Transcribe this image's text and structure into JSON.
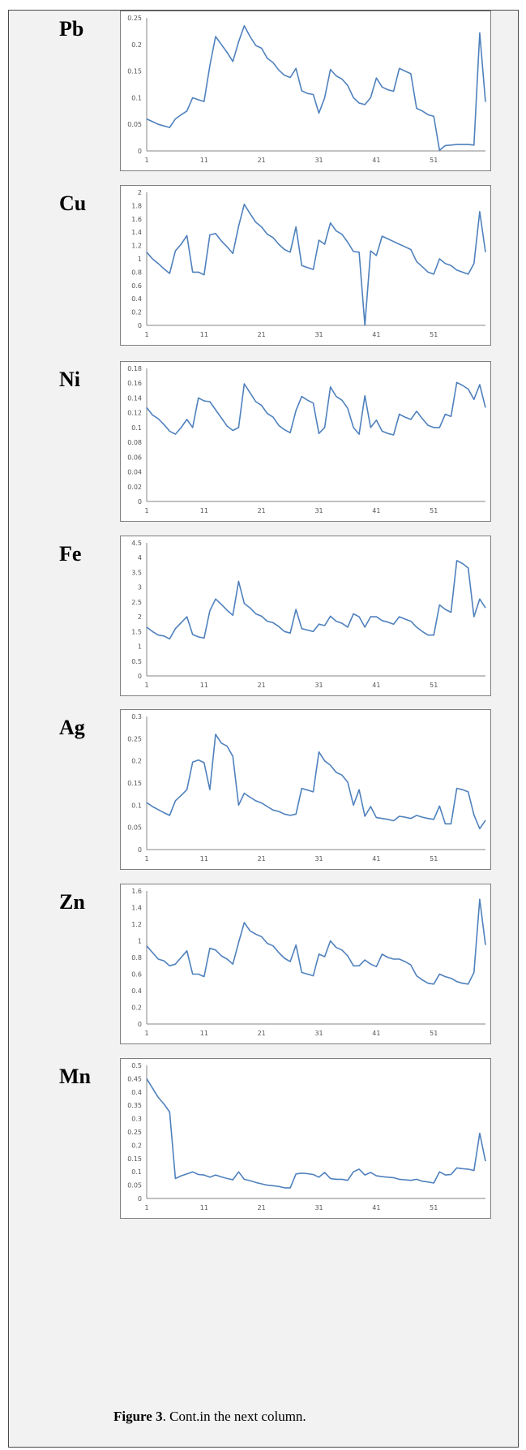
{
  "caption": {
    "label": "Figure 3",
    "text": ". Cont.in the next column."
  },
  "colors": {
    "line": "#4f81bd",
    "axis": "#868686"
  },
  "chart_data": [
    {
      "type": "line",
      "element": "Pb",
      "ylim": [
        0,
        0.25
      ],
      "yticks": [
        "0",
        "0.05",
        "0.1",
        "0.15",
        "0.2",
        "0.25"
      ],
      "xticks": [
        "1",
        "11",
        "21",
        "31",
        "41",
        "51"
      ],
      "x": [
        1,
        2,
        3,
        4,
        5,
        6,
        7,
        8,
        9,
        10,
        11,
        12,
        13,
        14,
        15,
        16,
        17,
        18,
        19,
        20,
        21,
        22,
        23,
        24,
        25,
        26,
        27,
        28,
        29,
        30,
        31,
        32,
        33,
        34,
        35,
        36,
        37,
        38,
        39,
        40,
        41,
        42,
        43,
        44,
        45,
        46,
        47,
        48,
        49,
        50,
        51,
        52,
        53,
        54,
        55,
        56,
        57,
        58,
        59,
        60
      ],
      "values": [
        0.06,
        0.055,
        0.05,
        0.047,
        0.044,
        0.06,
        0.068,
        0.075,
        0.1,
        0.096,
        0.093,
        0.16,
        0.215,
        0.2,
        0.185,
        0.168,
        0.205,
        0.235,
        0.215,
        0.198,
        0.193,
        0.174,
        0.166,
        0.152,
        0.142,
        0.138,
        0.155,
        0.113,
        0.108,
        0.106,
        0.071,
        0.1,
        0.153,
        0.141,
        0.135,
        0.123,
        0.1,
        0.09,
        0.087,
        0.1,
        0.137,
        0.12,
        0.115,
        0.112,
        0.155,
        0.15,
        0.145,
        0.08,
        0.075,
        0.068,
        0.065,
        0.001,
        0.01,
        0.011,
        0.012,
        0.012,
        0.012,
        0.011,
        0.222,
        0.092
      ]
    },
    {
      "type": "line",
      "element": "Cu",
      "ylim": [
        0,
        2
      ],
      "yticks": [
        "0",
        "0.2",
        "0.4",
        "0.6",
        "0.8",
        "1",
        "1.2",
        "1.4",
        "1.6",
        "1.8",
        "2"
      ],
      "xticks": [
        "1",
        "11",
        "21",
        "31",
        "41",
        "51"
      ],
      "x": [
        1,
        2,
        3,
        4,
        5,
        6,
        7,
        8,
        9,
        10,
        11,
        12,
        13,
        14,
        15,
        16,
        17,
        18,
        19,
        20,
        21,
        22,
        23,
        24,
        25,
        26,
        27,
        28,
        29,
        30,
        31,
        32,
        33,
        34,
        35,
        36,
        37,
        38,
        39,
        40,
        41,
        42,
        43,
        44,
        45,
        46,
        47,
        48,
        49,
        50,
        51,
        52,
        53,
        54,
        55,
        56,
        57,
        58,
        59,
        60
      ],
      "values": [
        1.1,
        1.0,
        0.93,
        0.85,
        0.78,
        1.12,
        1.22,
        1.35,
        0.8,
        0.8,
        0.76,
        1.36,
        1.38,
        1.27,
        1.18,
        1.08,
        1.49,
        1.82,
        1.68,
        1.55,
        1.48,
        1.37,
        1.32,
        1.22,
        1.14,
        1.1,
        1.48,
        0.9,
        0.87,
        0.84,
        1.28,
        1.22,
        1.54,
        1.42,
        1.37,
        1.25,
        1.11,
        1.1,
        0.0,
        1.12,
        1.05,
        1.34,
        1.3,
        1.26,
        1.22,
        1.18,
        1.14,
        0.96,
        0.88,
        0.8,
        0.77,
        1.0,
        0.93,
        0.9,
        0.83,
        0.8,
        0.77,
        0.93,
        1.71,
        1.1
      ]
    },
    {
      "type": "line",
      "element": "Ni",
      "ylim": [
        0,
        0.18
      ],
      "yticks": [
        "0",
        "0.02",
        "0.04",
        "0.06",
        "0.08",
        "0.1",
        "0.12",
        "0.14",
        "0.16",
        "0.18"
      ],
      "xticks": [
        "1",
        "11",
        "21",
        "31",
        "41",
        "51"
      ],
      "x": [
        1,
        2,
        3,
        4,
        5,
        6,
        7,
        8,
        9,
        10,
        11,
        12,
        13,
        14,
        15,
        16,
        17,
        18,
        19,
        20,
        21,
        22,
        23,
        24,
        25,
        26,
        27,
        28,
        29,
        30,
        31,
        32,
        33,
        34,
        35,
        36,
        37,
        38,
        39,
        40,
        41,
        42,
        43,
        44,
        45,
        46,
        47,
        48,
        49,
        50,
        51,
        52,
        53,
        54,
        55,
        56,
        57,
        58,
        59,
        60
      ],
      "values": [
        0.127,
        0.117,
        0.112,
        0.104,
        0.095,
        0.091,
        0.1,
        0.111,
        0.1,
        0.14,
        0.136,
        0.135,
        0.124,
        0.113,
        0.102,
        0.096,
        0.1,
        0.159,
        0.147,
        0.135,
        0.13,
        0.119,
        0.114,
        0.103,
        0.097,
        0.093,
        0.123,
        0.142,
        0.137,
        0.133,
        0.092,
        0.1,
        0.155,
        0.142,
        0.137,
        0.126,
        0.1,
        0.091,
        0.143,
        0.1,
        0.11,
        0.095,
        0.092,
        0.09,
        0.118,
        0.114,
        0.111,
        0.122,
        0.112,
        0.103,
        0.1,
        0.1,
        0.118,
        0.115,
        0.161,
        0.157,
        0.152,
        0.138,
        0.158,
        0.127
      ]
    },
    {
      "type": "line",
      "element": "Fe",
      "ylim": [
        0,
        4.5
      ],
      "yticks": [
        "0",
        "0.5",
        "1",
        "1.5",
        "2",
        "2.5",
        "3",
        "3.5",
        "4",
        "4.5"
      ],
      "xticks": [
        "1",
        "11",
        "21",
        "31",
        "41",
        "51"
      ],
      "x": [
        1,
        2,
        3,
        4,
        5,
        6,
        7,
        8,
        9,
        10,
        11,
        12,
        13,
        14,
        15,
        16,
        17,
        18,
        19,
        20,
        21,
        22,
        23,
        24,
        25,
        26,
        27,
        28,
        29,
        30,
        31,
        32,
        33,
        34,
        35,
        36,
        37,
        38,
        39,
        40,
        41,
        42,
        43,
        44,
        45,
        46,
        47,
        48,
        49,
        50,
        51,
        52,
        53,
        54,
        55,
        56,
        57,
        58,
        59,
        60
      ],
      "values": [
        1.65,
        1.5,
        1.38,
        1.35,
        1.25,
        1.6,
        1.8,
        2.0,
        1.4,
        1.32,
        1.28,
        2.2,
        2.6,
        2.42,
        2.22,
        2.05,
        3.2,
        2.45,
        2.3,
        2.1,
        2.02,
        1.85,
        1.8,
        1.67,
        1.5,
        1.45,
        2.25,
        1.6,
        1.55,
        1.5,
        1.75,
        1.7,
        2.02,
        1.85,
        1.78,
        1.65,
        2.1,
        2.0,
        1.65,
        2.0,
        2.0,
        1.87,
        1.82,
        1.75,
        2.0,
        1.92,
        1.85,
        1.65,
        1.5,
        1.38,
        1.38,
        2.4,
        2.25,
        2.15,
        3.9,
        3.8,
        3.65,
        2.0,
        2.6,
        2.3
      ]
    },
    {
      "type": "line",
      "element": "Ag",
      "ylim": [
        0,
        0.3
      ],
      "yticks": [
        "0",
        "0.05",
        "0.1",
        "0.15",
        "0.2",
        "0.25",
        "0.3"
      ],
      "xticks": [
        "1",
        "11",
        "21",
        "31",
        "41",
        "51"
      ],
      "x": [
        1,
        2,
        3,
        4,
        5,
        6,
        7,
        8,
        9,
        10,
        11,
        12,
        13,
        14,
        15,
        16,
        17,
        18,
        19,
        20,
        21,
        22,
        23,
        24,
        25,
        26,
        27,
        28,
        29,
        30,
        31,
        32,
        33,
        34,
        35,
        36,
        37,
        38,
        39,
        40,
        41,
        42,
        43,
        44,
        45,
        46,
        47,
        48,
        49,
        50,
        51,
        52,
        53,
        54,
        55,
        56,
        57,
        58,
        59,
        60
      ],
      "values": [
        0.106,
        0.097,
        0.09,
        0.083,
        0.077,
        0.11,
        0.122,
        0.135,
        0.197,
        0.202,
        0.196,
        0.135,
        0.26,
        0.24,
        0.233,
        0.21,
        0.1,
        0.127,
        0.118,
        0.11,
        0.105,
        0.097,
        0.089,
        0.086,
        0.08,
        0.077,
        0.08,
        0.138,
        0.134,
        0.13,
        0.22,
        0.2,
        0.19,
        0.174,
        0.168,
        0.152,
        0.1,
        0.135,
        0.075,
        0.097,
        0.072,
        0.07,
        0.068,
        0.065,
        0.075,
        0.073,
        0.07,
        0.077,
        0.073,
        0.07,
        0.068,
        0.098,
        0.058,
        0.058,
        0.138,
        0.135,
        0.13,
        0.078,
        0.047,
        0.066
      ]
    },
    {
      "type": "line",
      "element": "Zn",
      "ylim": [
        0,
        1.6
      ],
      "yticks": [
        "0",
        "0.2",
        "0.4",
        "0.6",
        "0.8",
        "1",
        "1.2",
        "1.4",
        "1.6"
      ],
      "xticks": [
        "1",
        "11",
        "21",
        "31",
        "41",
        "51"
      ],
      "x": [
        1,
        2,
        3,
        4,
        5,
        6,
        7,
        8,
        9,
        10,
        11,
        12,
        13,
        14,
        15,
        16,
        17,
        18,
        19,
        20,
        21,
        22,
        23,
        24,
        25,
        26,
        27,
        28,
        29,
        30,
        31,
        32,
        33,
        34,
        35,
        36,
        37,
        38,
        39,
        40,
        41,
        42,
        43,
        44,
        45,
        46,
        47,
        48,
        49,
        50,
        51,
        52,
        53,
        54,
        55,
        56,
        57,
        58,
        59,
        60
      ],
      "values": [
        0.94,
        0.86,
        0.78,
        0.76,
        0.7,
        0.72,
        0.8,
        0.88,
        0.6,
        0.6,
        0.57,
        0.91,
        0.89,
        0.82,
        0.78,
        0.72,
        0.98,
        1.22,
        1.12,
        1.08,
        1.05,
        0.97,
        0.94,
        0.86,
        0.79,
        0.75,
        0.95,
        0.62,
        0.6,
        0.58,
        0.84,
        0.81,
        1.0,
        0.92,
        0.89,
        0.82,
        0.7,
        0.7,
        0.77,
        0.72,
        0.69,
        0.84,
        0.8,
        0.78,
        0.78,
        0.75,
        0.71,
        0.58,
        0.53,
        0.49,
        0.48,
        0.6,
        0.57,
        0.55,
        0.51,
        0.49,
        0.48,
        0.62,
        1.5,
        0.95
      ]
    },
    {
      "type": "line",
      "element": "Mn",
      "ylim": [
        0,
        0.5
      ],
      "yticks": [
        "0",
        "0.05",
        "0.1",
        "0.15",
        "0.2",
        "0.25",
        "0.3",
        "0.35",
        "0.4",
        "0.45",
        "0.5"
      ],
      "xticks": [
        "1",
        "11",
        "21",
        "31",
        "41",
        "51"
      ],
      "x": [
        1,
        2,
        3,
        4,
        5,
        6,
        7,
        8,
        9,
        10,
        11,
        12,
        13,
        14,
        15,
        16,
        17,
        18,
        19,
        20,
        21,
        22,
        23,
        24,
        25,
        26,
        27,
        28,
        29,
        30,
        31,
        32,
        33,
        34,
        35,
        36,
        37,
        38,
        39,
        40,
        41,
        42,
        43,
        44,
        45,
        46,
        47,
        48,
        49,
        50,
        51,
        52,
        53,
        54,
        55,
        56,
        57,
        58,
        59,
        60
      ],
      "values": [
        0.45,
        0.415,
        0.38,
        0.355,
        0.325,
        0.075,
        0.085,
        0.092,
        0.1,
        0.09,
        0.088,
        0.08,
        0.088,
        0.081,
        0.075,
        0.07,
        0.1,
        0.072,
        0.067,
        0.06,
        0.055,
        0.05,
        0.048,
        0.045,
        0.04,
        0.04,
        0.092,
        0.095,
        0.093,
        0.09,
        0.08,
        0.098,
        0.075,
        0.072,
        0.072,
        0.068,
        0.1,
        0.11,
        0.088,
        0.098,
        0.085,
        0.082,
        0.08,
        0.078,
        0.072,
        0.07,
        0.068,
        0.072,
        0.065,
        0.062,
        0.058,
        0.1,
        0.088,
        0.09,
        0.115,
        0.112,
        0.11,
        0.105,
        0.245,
        0.14
      ]
    }
  ]
}
